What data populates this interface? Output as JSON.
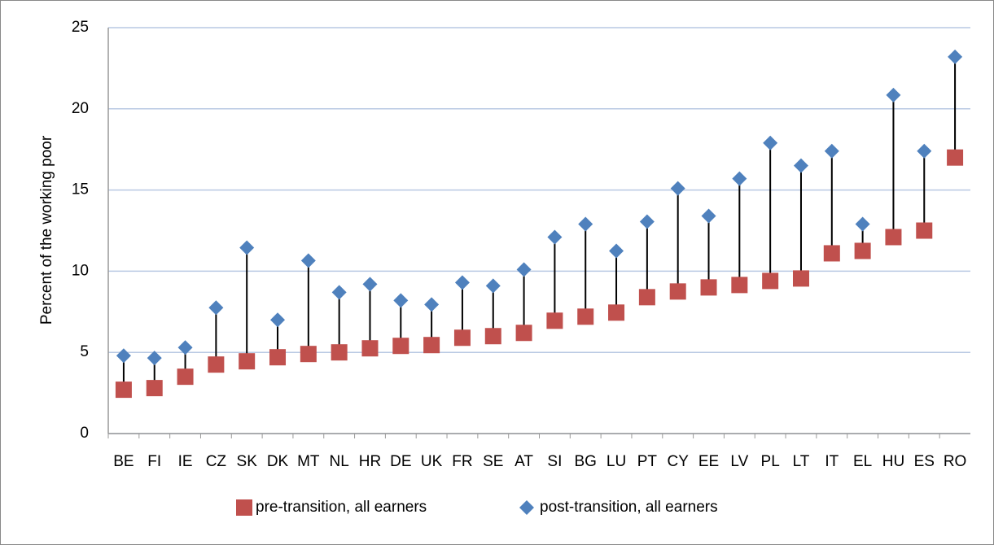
{
  "chart_data": {
    "type": "dumbbell",
    "y_label": "Percent of the working poor",
    "categories": [
      "BE",
      "FI",
      "IE",
      "CZ",
      "SK",
      "DK",
      "MT",
      "NL",
      "HR",
      "DE",
      "UK",
      "FR",
      "SE",
      "AT",
      "SI",
      "BG",
      "LU",
      "PT",
      "CY",
      "EE",
      "LV",
      "PL",
      "LT",
      "IT",
      "EL",
      "HU",
      "ES",
      "RO"
    ],
    "series": [
      {
        "name": "pre-transition, all earners",
        "color": "#c0504d",
        "values": [
          2.7,
          2.8,
          3.5,
          4.25,
          4.45,
          4.7,
          4.9,
          5.0,
          5.25,
          5.4,
          5.45,
          5.9,
          6.0,
          6.2,
          6.95,
          7.2,
          7.45,
          8.4,
          8.75,
          9.0,
          9.15,
          9.4,
          9.55,
          11.1,
          11.25,
          12.1,
          12.5,
          17.0
        ]
      },
      {
        "name": "post-transition, all earners",
        "color": "#4f81bd",
        "values": [
          4.8,
          4.65,
          5.3,
          7.75,
          11.45,
          7.0,
          10.65,
          8.7,
          9.2,
          8.2,
          7.95,
          9.3,
          9.1,
          10.1,
          12.1,
          12.9,
          11.25,
          13.05,
          15.1,
          13.4,
          15.7,
          17.9,
          16.5,
          17.4,
          12.9,
          20.85,
          17.4,
          23.2
        ]
      }
    ],
    "connector_color": "#000000",
    "ylim": [
      0,
      25
    ],
    "yticks": [
      0,
      5,
      10,
      15,
      20,
      25
    ],
    "grid": true,
    "legend": "bottom"
  }
}
